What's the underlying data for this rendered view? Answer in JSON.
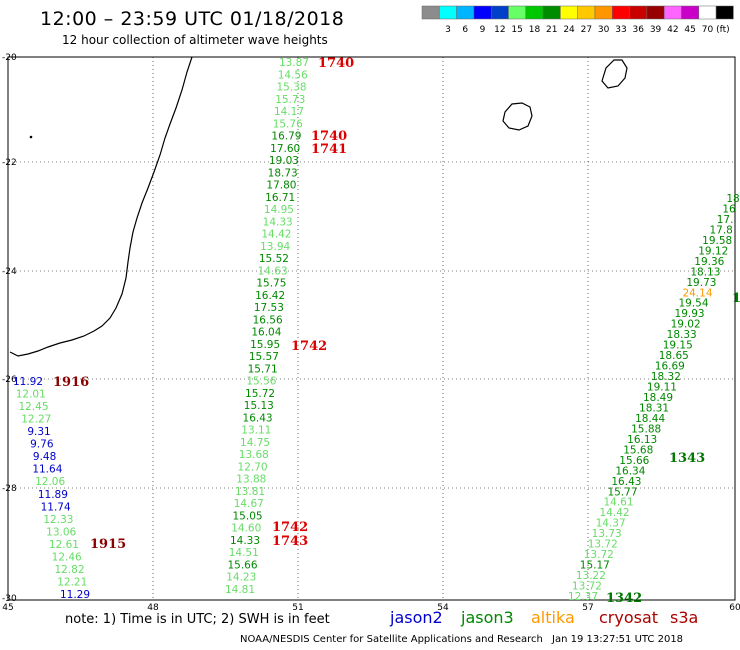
{
  "header": {
    "title": "12:00 – 23:59 UTC 01/18/2018",
    "subtitle": "12 hour collection of altimeter wave heights"
  },
  "legend": {
    "unit": "(ft)",
    "swatches": [
      {
        "color": "#8c8c8c",
        "label": ""
      },
      {
        "color": "#00ffff",
        "label": "3"
      },
      {
        "color": "#00b4ff",
        "label": "6"
      },
      {
        "color": "#0000ff",
        "label": "9"
      },
      {
        "color": "#0040c8",
        "label": "12"
      },
      {
        "color": "#66ff66",
        "label": "15"
      },
      {
        "color": "#00c800",
        "label": "18"
      },
      {
        "color": "#008c00",
        "label": "21"
      },
      {
        "color": "#ffff00",
        "label": "24"
      },
      {
        "color": "#ffc800",
        "label": "27"
      },
      {
        "color": "#ff9600",
        "label": "30"
      },
      {
        "color": "#ff0000",
        "label": "33"
      },
      {
        "color": "#c80000",
        "label": "36"
      },
      {
        "color": "#960000",
        "label": "39"
      },
      {
        "color": "#ff64ff",
        "label": "42"
      },
      {
        "color": "#c800c8",
        "label": "45"
      },
      {
        "color": "#ffffff",
        "label": "70"
      },
      {
        "color": "#000000",
        "label": ""
      }
    ]
  },
  "map": {
    "lat_labels": [
      "-20",
      "-22",
      "-24",
      "-26",
      "-28",
      "-30"
    ],
    "lon_labels": [
      "45",
      "48",
      "51",
      "54",
      "57",
      "60"
    ],
    "colors": {
      "jason2": "#0000cc",
      "jason3": "#008800",
      "altika": "#ff9900",
      "cryosat": "#aa0000",
      "s3a": "#aa0000",
      "light_green": "#66dd66",
      "time_red": "#dd0000",
      "time_darkred": "#880000",
      "time_green": "#007700"
    },
    "track1": [
      {
        "v": "13.87",
        "c": "light_green"
      },
      {
        "v": "14.56",
        "c": "light_green"
      },
      {
        "v": "15.38",
        "c": "light_green"
      },
      {
        "v": "15.73",
        "c": "light_green"
      },
      {
        "v": "14.17",
        "c": "light_green"
      },
      {
        "v": "15.76",
        "c": "light_green"
      },
      {
        "v": "16.79",
        "c": "jason3"
      },
      {
        "v": "17.60",
        "c": "jason3"
      },
      {
        "v": "19.03",
        "c": "jason3"
      },
      {
        "v": "18.73",
        "c": "jason3"
      },
      {
        "v": "17.80",
        "c": "jason3"
      },
      {
        "v": "16.71",
        "c": "jason3"
      },
      {
        "v": "14.95",
        "c": "light_green"
      },
      {
        "v": "14.33",
        "c": "light_green"
      },
      {
        "v": "14.42",
        "c": "light_green"
      },
      {
        "v": "13.94",
        "c": "light_green"
      },
      {
        "v": "15.52",
        "c": "jason3"
      },
      {
        "v": "14.63",
        "c": "light_green"
      },
      {
        "v": "15.75",
        "c": "jason3"
      },
      {
        "v": "16.42",
        "c": "jason3"
      },
      {
        "v": "17.53",
        "c": "jason3"
      },
      {
        "v": "16.56",
        "c": "jason3"
      },
      {
        "v": "16.04",
        "c": "jason3"
      },
      {
        "v": "15.95",
        "c": "jason3"
      },
      {
        "v": "15.57",
        "c": "jason3"
      },
      {
        "v": "15.71",
        "c": "jason3"
      },
      {
        "v": "15.56",
        "c": "light_green"
      },
      {
        "v": "15.72",
        "c": "jason3"
      },
      {
        "v": "15.13",
        "c": "jason3"
      },
      {
        "v": "16.43",
        "c": "jason3"
      },
      {
        "v": "13.11",
        "c": "light_green"
      },
      {
        "v": "14.75",
        "c": "light_green"
      },
      {
        "v": "13.68",
        "c": "light_green"
      },
      {
        "v": "12.70",
        "c": "light_green"
      },
      {
        "v": "13.88",
        "c": "light_green"
      },
      {
        "v": "13.81",
        "c": "light_green"
      },
      {
        "v": "14.67",
        "c": "light_green"
      },
      {
        "v": "15.05",
        "c": "jason3"
      },
      {
        "v": "14.60",
        "c": "light_green"
      },
      {
        "v": "14.33",
        "c": "jason3"
      },
      {
        "v": "14.51",
        "c": "light_green"
      },
      {
        "v": "15.66",
        "c": "jason3"
      },
      {
        "v": "14.23",
        "c": "light_green"
      },
      {
        "v": "14.81",
        "c": "light_green"
      }
    ],
    "track2": [
      {
        "v": "11.92",
        "c": "jason2"
      },
      {
        "v": "12.01",
        "c": "light_green"
      },
      {
        "v": "12.45",
        "c": "light_green"
      },
      {
        "v": "12.27",
        "c": "light_green"
      },
      {
        "v": "9.31",
        "c": "jason2"
      },
      {
        "v": "9.76",
        "c": "jason2"
      },
      {
        "v": "9.48",
        "c": "jason2"
      },
      {
        "v": "11.64",
        "c": "jason2"
      },
      {
        "v": "12.06",
        "c": "light_green"
      },
      {
        "v": "11.89",
        "c": "jason2"
      },
      {
        "v": "11.74",
        "c": "jason2"
      },
      {
        "v": "12.33",
        "c": "light_green"
      },
      {
        "v": "13.06",
        "c": "light_green"
      },
      {
        "v": "12.61",
        "c": "light_green"
      },
      {
        "v": "12.46",
        "c": "light_green"
      },
      {
        "v": "12.82",
        "c": "light_green"
      },
      {
        "v": "12.21",
        "c": "light_green"
      },
      {
        "v": "11.29",
        "c": "jason2"
      }
    ],
    "track3": [
      {
        "v": "12.37",
        "c": "light_green"
      },
      {
        "v": "13.72",
        "c": "light_green"
      },
      {
        "v": "13.22",
        "c": "light_green"
      },
      {
        "v": "15.17",
        "c": "jason3"
      },
      {
        "v": "13.72",
        "c": "light_green"
      },
      {
        "v": "13.72",
        "c": "light_green"
      },
      {
        "v": "13.73",
        "c": "light_green"
      },
      {
        "v": "14.37",
        "c": "light_green"
      },
      {
        "v": "14.42",
        "c": "light_green"
      },
      {
        "v": "14.61",
        "c": "light_green"
      },
      {
        "v": "15.77",
        "c": "jason3"
      },
      {
        "v": "16.43",
        "c": "jason3"
      },
      {
        "v": "16.34",
        "c": "jason3"
      },
      {
        "v": "15.66",
        "c": "jason3"
      },
      {
        "v": "15.68",
        "c": "jason3"
      },
      {
        "v": "16.13",
        "c": "jason3"
      },
      {
        "v": "15.88",
        "c": "jason3"
      },
      {
        "v": "18.44",
        "c": "jason3"
      },
      {
        "v": "18.31",
        "c": "jason3"
      },
      {
        "v": "18.49",
        "c": "jason3"
      },
      {
        "v": "19.11",
        "c": "jason3"
      },
      {
        "v": "18.32",
        "c": "jason3"
      },
      {
        "v": "16.69",
        "c": "jason3"
      },
      {
        "v": "18.65",
        "c": "jason3"
      },
      {
        "v": "19.15",
        "c": "jason3"
      },
      {
        "v": "18.33",
        "c": "jason3"
      },
      {
        "v": "19.02",
        "c": "jason3"
      },
      {
        "v": "19.93",
        "c": "jason3"
      },
      {
        "v": "19.54",
        "c": "jason3"
      },
      {
        "v": "24.14",
        "c": "altika"
      },
      {
        "v": "19.73",
        "c": "jason3"
      },
      {
        "v": "18.13",
        "c": "jason3"
      },
      {
        "v": "19.36",
        "c": "jason3"
      },
      {
        "v": "19.12",
        "c": "jason3"
      },
      {
        "v": "19.58",
        "c": "jason3"
      },
      {
        "v": "17.8",
        "c": "jason3"
      },
      {
        "v": "17.",
        "c": "jason3"
      },
      {
        "v": "16",
        "c": "jason3"
      },
      {
        "v": "18",
        "c": "jason3"
      }
    ],
    "time_labels": [
      {
        "t": "1740",
        "c": "time_red"
      },
      {
        "t": "1740",
        "c": "time_red"
      },
      {
        "t": "1741",
        "c": "time_red"
      },
      {
        "t": "1742",
        "c": "time_red"
      },
      {
        "t": "1916",
        "c": "time_darkred"
      },
      {
        "t": "1742",
        "c": "time_red"
      },
      {
        "t": "1743",
        "c": "time_red"
      },
      {
        "t": "1915",
        "c": "time_darkred"
      },
      {
        "t": "1343",
        "c": "time_green"
      },
      {
        "t": "1342",
        "c": "time_green"
      },
      {
        "t": "1",
        "c": "time_green"
      }
    ]
  },
  "footer": {
    "note": "note:  1) Time is in UTC; 2) SWH is in feet",
    "satellites": [
      {
        "name": "jason2",
        "c": "jason2"
      },
      {
        "name": "jason3",
        "c": "jason3"
      },
      {
        "name": "altika",
        "c": "altika"
      },
      {
        "name": "cryosat",
        "c": "cryosat"
      },
      {
        "name": "s3a",
        "c": "s3a"
      }
    ],
    "credit": "NOAA/NESDIS Center for Satellite Applications and Research",
    "timestamp": "Jan 19 13:27:51 UTC 2018"
  }
}
